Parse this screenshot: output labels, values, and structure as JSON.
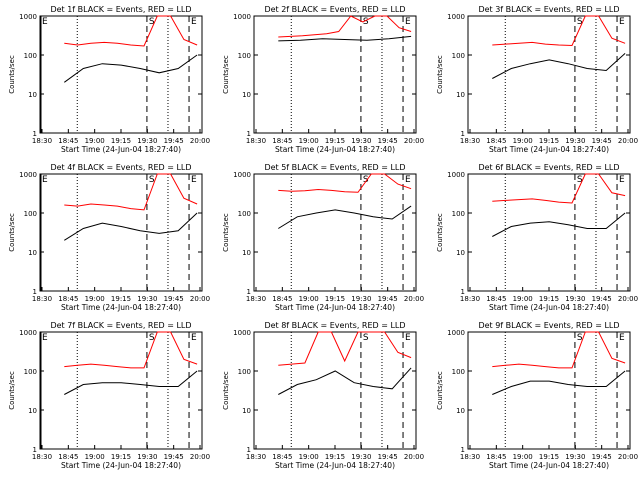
{
  "window": {
    "background": "#ffffff"
  },
  "colors": {
    "events": "#000000",
    "lld": "#ff0000",
    "axes": "#000000"
  },
  "chart_data": [
    {
      "type": "line",
      "title": "Det 1f BLACK = Events, RED = LLD",
      "xlabel": "Start Time (24-Jun-04 18:27:40)",
      "ylabel": "Counts/sec",
      "yscale": "log",
      "ylim": [
        1,
        1000
      ],
      "x_tick_labels": [
        "18:30",
        "18:45",
        "19:00",
        "19:15"
      ],
      "x_tick_labels_2": [
        "19:30",
        "19:45",
        "20:00"
      ],
      "y_tick_labels": [
        "1",
        "10",
        "100",
        "1000"
      ],
      "markers": [
        {
          "label": "E",
          "style": "solid"
        },
        {
          "label": "",
          "style": "dotted"
        },
        {
          "label": "S",
          "style": "dashed"
        },
        {
          "label": "",
          "style": "dotted"
        },
        {
          "label": "E",
          "style": "dashed"
        }
      ],
      "series": [
        {
          "color": "#000000",
          "values": [
            20,
            45,
            60,
            55,
            45,
            35,
            45,
            100
          ]
        },
        {
          "color": "#ff0000",
          "values": [
            200,
            180,
            200,
            210,
            200,
            180,
            170,
            1000,
            1000,
            250,
            180
          ]
        }
      ]
    },
    {
      "type": "line",
      "title": "Det 2f BLACK = Events, RED = LLD",
      "xlabel": "Start Time (24-Jun-04 18:27:40)",
      "ylabel": "Counts/sec",
      "yscale": "log",
      "ylim": [
        1,
        1000
      ],
      "x_tick_labels": [
        "18:30",
        "18:45",
        "19:00",
        "19:15"
      ],
      "x_tick_labels_2": [
        "19:30",
        "19:45",
        "20:00"
      ],
      "y_tick_labels": [
        "1",
        "10",
        "100",
        "1000"
      ],
      "markers": [
        {
          "label": "",
          "style": "dotted"
        },
        {
          "label": "S",
          "style": "dashed"
        },
        {
          "label": "",
          "style": "dotted"
        },
        {
          "label": "E",
          "style": "dashed"
        }
      ],
      "series": [
        {
          "color": "#000000",
          "values": [
            230,
            240,
            260,
            250,
            240,
            260,
            300
          ]
        },
        {
          "color": "#ff0000",
          "values": [
            290,
            300,
            310,
            330,
            350,
            400,
            1000,
            700,
            1000,
            1000,
            500,
            400
          ]
        }
      ]
    },
    {
      "type": "line",
      "title": "Det 3f BLACK = Events, RED = LLD",
      "xlabel": "Start Time (24-Jun-04 18:27:40)",
      "ylabel": "Counts/sec",
      "yscale": "log",
      "ylim": [
        1,
        1000
      ],
      "x_tick_labels": [
        "18:30",
        "18:45",
        "19:00",
        "19:15"
      ],
      "x_tick_labels_2": [
        "19:30",
        "19:45",
        "20:00"
      ],
      "y_tick_labels": [
        "1",
        "10",
        "100",
        "1000"
      ],
      "markers": [
        {
          "label": "",
          "style": "dotted"
        },
        {
          "label": "S",
          "style": "dashed"
        },
        {
          "label": "",
          "style": "dotted"
        },
        {
          "label": "E",
          "style": "dashed"
        }
      ],
      "series": [
        {
          "color": "#000000",
          "values": [
            25,
            45,
            60,
            75,
            60,
            45,
            40,
            110
          ]
        },
        {
          "color": "#ff0000",
          "values": [
            180,
            190,
            200,
            210,
            190,
            180,
            175,
            1000,
            1000,
            270,
            200
          ]
        }
      ]
    },
    {
      "type": "line",
      "title": "Det 4f BLACK = Events, RED = LLD",
      "xlabel": "Start Time (24-Jun-04 18:27:40)",
      "ylabel": "Counts/sec",
      "yscale": "log",
      "ylim": [
        1,
        1000
      ],
      "x_tick_labels": [
        "18:30",
        "18:45",
        "19:00",
        "19:15"
      ],
      "x_tick_labels_2": [
        "19:30",
        "19:45",
        "20:00"
      ],
      "y_tick_labels": [
        "1",
        "10",
        "100",
        "1000"
      ],
      "markers": [
        {
          "label": "E",
          "style": "solid"
        },
        {
          "label": "",
          "style": "dotted"
        },
        {
          "label": "S",
          "style": "dashed"
        },
        {
          "label": "",
          "style": "dotted"
        },
        {
          "label": "E",
          "style": "dashed"
        }
      ],
      "series": [
        {
          "color": "#000000",
          "values": [
            20,
            40,
            55,
            45,
            35,
            30,
            35,
            100
          ]
        },
        {
          "color": "#ff0000",
          "values": [
            160,
            150,
            170,
            160,
            150,
            130,
            120,
            1000,
            1000,
            240,
            170
          ]
        }
      ]
    },
    {
      "type": "line",
      "title": "Det 5f BLACK = Events, RED = LLD",
      "xlabel": "Start Time (24-Jun-04 18:27:40)",
      "ylabel": "Counts/sec",
      "yscale": "log",
      "ylim": [
        1,
        1000
      ],
      "x_tick_labels": [
        "18:30",
        "18:45",
        "19:00",
        "19:15"
      ],
      "x_tick_labels_2": [
        "19:30",
        "19:45",
        "20:00"
      ],
      "y_tick_labels": [
        "1",
        "10",
        "100",
        "1000"
      ],
      "markers": [
        {
          "label": "",
          "style": "dotted"
        },
        {
          "label": "S",
          "style": "dashed"
        },
        {
          "label": "",
          "style": "dotted"
        },
        {
          "label": "E",
          "style": "dashed"
        }
      ],
      "series": [
        {
          "color": "#000000",
          "values": [
            40,
            80,
            100,
            120,
            100,
            80,
            70,
            150
          ]
        },
        {
          "color": "#ff0000",
          "values": [
            380,
            360,
            370,
            400,
            380,
            350,
            340,
            1000,
            1000,
            550,
            420
          ]
        }
      ]
    },
    {
      "type": "line",
      "title": "Det 6f BLACK = Events, RED = LLD",
      "xlabel": "Start Time (24-Jun-04 18:27:40)",
      "ylabel": "Counts/sec",
      "yscale": "log",
      "ylim": [
        1,
        1000
      ],
      "x_tick_labels": [
        "18:30",
        "18:45",
        "19:00",
        "19:15"
      ],
      "x_tick_labels_2": [
        "19:30",
        "19:45",
        "20:00"
      ],
      "y_tick_labels": [
        "1",
        "10",
        "100",
        "1000"
      ],
      "markers": [
        {
          "label": "",
          "style": "dotted"
        },
        {
          "label": "S",
          "style": "dashed"
        },
        {
          "label": "",
          "style": "dotted"
        },
        {
          "label": "E",
          "style": "dashed"
        }
      ],
      "series": [
        {
          "color": "#000000",
          "values": [
            25,
            45,
            55,
            60,
            50,
            40,
            40,
            100
          ]
        },
        {
          "color": "#ff0000",
          "values": [
            200,
            210,
            220,
            230,
            210,
            190,
            180,
            1000,
            1000,
            330,
            280
          ]
        }
      ]
    },
    {
      "type": "line",
      "title": "Det 7f BLACK = Events, RED = LLD",
      "xlabel": "Start Time (24-Jun-04 18:27:40)",
      "ylabel": "Counts/sec",
      "yscale": "log",
      "ylim": [
        1,
        1000
      ],
      "x_tick_labels": [
        "18:30",
        "18:45",
        "19:00",
        "19:15"
      ],
      "x_tick_labels_2": [
        "19:30",
        "19:45",
        "20:00"
      ],
      "y_tick_labels": [
        "1",
        "10",
        "100",
        "1000"
      ],
      "markers": [
        {
          "label": "E",
          "style": "solid"
        },
        {
          "label": "",
          "style": "dotted"
        },
        {
          "label": "S",
          "style": "dashed"
        },
        {
          "label": "",
          "style": "dotted"
        },
        {
          "label": "E",
          "style": "dashed"
        }
      ],
      "series": [
        {
          "color": "#000000",
          "values": [
            25,
            45,
            50,
            50,
            45,
            40,
            40,
            100
          ]
        },
        {
          "color": "#ff0000",
          "values": [
            130,
            140,
            150,
            140,
            130,
            120,
            120,
            1000,
            1000,
            200,
            150
          ]
        }
      ]
    },
    {
      "type": "line",
      "title": "Det 8f BLACK = Events, RED = LLD",
      "xlabel": "Start Time (24-Jun-04 18:27:40)",
      "ylabel": "Counts/sec",
      "yscale": "log",
      "ylim": [
        1,
        1000
      ],
      "x_tick_labels": [
        "18:30",
        "18:45",
        "19:00",
        "19:15"
      ],
      "x_tick_labels_2": [
        "19:30",
        "19:45",
        "20:00"
      ],
      "y_tick_labels": [
        "1",
        "10",
        "100",
        "1000"
      ],
      "markers": [
        {
          "label": "",
          "style": "dotted"
        },
        {
          "label": "S",
          "style": "dashed"
        },
        {
          "label": "",
          "style": "dotted"
        },
        {
          "label": "E",
          "style": "dashed"
        }
      ],
      "series": [
        {
          "color": "#000000",
          "values": [
            25,
            45,
            60,
            100,
            50,
            40,
            35,
            120
          ]
        },
        {
          "color": "#ff0000",
          "values": [
            140,
            150,
            160,
            1000,
            1000,
            180,
            1000,
            1000,
            1000,
            300,
            220
          ]
        }
      ]
    },
    {
      "type": "line",
      "title": "Det 9f BLACK = Events, RED = LLD",
      "xlabel": "Start Time (24-Jun-04 18:27:40)",
      "ylabel": "Counts/sec",
      "yscale": "log",
      "ylim": [
        1,
        1000
      ],
      "x_tick_labels": [
        "18:30",
        "18:45",
        "19:00",
        "19:15"
      ],
      "x_tick_labels_2": [
        "19:30",
        "19:45",
        "20:00"
      ],
      "y_tick_labels": [
        "1",
        "10",
        "100",
        "1000"
      ],
      "markers": [
        {
          "label": "",
          "style": "dotted"
        },
        {
          "label": "S",
          "style": "dashed"
        },
        {
          "label": "",
          "style": "dotted"
        },
        {
          "label": "E",
          "style": "dashed"
        }
      ],
      "series": [
        {
          "color": "#000000",
          "values": [
            25,
            40,
            55,
            55,
            45,
            40,
            40,
            100
          ]
        },
        {
          "color": "#ff0000",
          "values": [
            130,
            140,
            150,
            140,
            130,
            120,
            120,
            1000,
            1000,
            210,
            160
          ]
        }
      ]
    }
  ]
}
